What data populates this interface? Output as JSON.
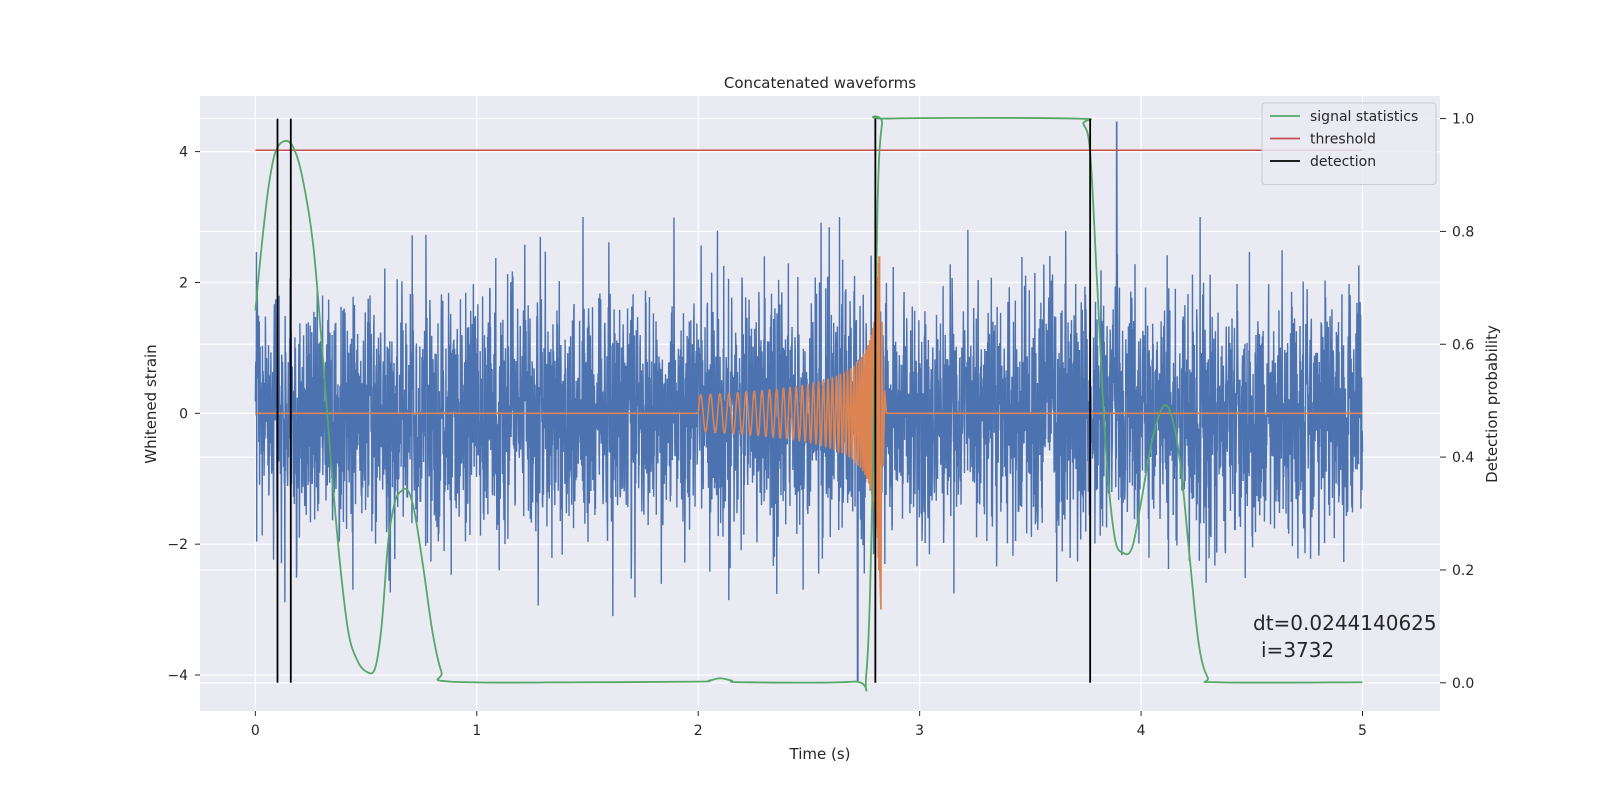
{
  "chart_data": {
    "type": "line",
    "title": "Concatenated waveforms",
    "xlabel": "Time (s)",
    "ylabel": "Whitened strain",
    "y2label": "Detection probability",
    "xlim": [
      -0.25,
      5.35
    ],
    "ylim": [
      -4.55,
      4.85
    ],
    "y2lim": [
      -0.05,
      1.04
    ],
    "xticks": [
      0,
      1,
      2,
      3,
      4,
      5
    ],
    "yticks": [
      -4,
      -2,
      0,
      2,
      4
    ],
    "y2ticks": [
      0.0,
      0.2,
      0.4,
      0.6,
      0.8,
      1.0
    ],
    "y2tick_labels": [
      "0.0",
      "0.2",
      "0.4",
      "0.6",
      "0.8",
      "1.0"
    ],
    "ytick_labels": [
      "−4",
      "−2",
      "0",
      "2",
      "4"
    ],
    "grid": true,
    "legend_position": "top-right",
    "legend": [
      {
        "name": "signal statistics",
        "color": "#55a868"
      },
      {
        "name": "threshold",
        "color": "#c44e52"
      },
      {
        "name": "detection",
        "color": "#000000"
      }
    ],
    "colors": {
      "noise": "#4c72b0",
      "template": "#dd8452",
      "statistics": "#55a868",
      "threshold": "#c44e52",
      "detection": "#000000",
      "plot_background": "#eaeaf2"
    },
    "noise": {
      "t_start": 0.0,
      "t_end": 5.0,
      "std": 0.95,
      "max_spike": 4.45,
      "spike_time": 3.89,
      "min_spike": -4.1,
      "min_spike_time": 2.72
    },
    "template": {
      "t_start": 2.0,
      "t_merge": 2.82,
      "peak_amplitude": 2.4,
      "min_amplitude": -3.0
    },
    "signal_statistics": {
      "points": [
        [
          0.0,
          0.66
        ],
        [
          0.03,
          0.78
        ],
        [
          0.06,
          0.88
        ],
        [
          0.09,
          0.94
        ],
        [
          0.13,
          0.96
        ],
        [
          0.17,
          0.95
        ],
        [
          0.21,
          0.9
        ],
        [
          0.26,
          0.78
        ],
        [
          0.3,
          0.6
        ],
        [
          0.34,
          0.4
        ],
        [
          0.38,
          0.22
        ],
        [
          0.42,
          0.09
        ],
        [
          0.46,
          0.04
        ],
        [
          0.5,
          0.02
        ],
        [
          0.54,
          0.025
        ],
        [
          0.57,
          0.1
        ],
        [
          0.6,
          0.25
        ],
        [
          0.63,
          0.32
        ],
        [
          0.66,
          0.34
        ],
        [
          0.69,
          0.34
        ],
        [
          0.72,
          0.3
        ],
        [
          0.76,
          0.2
        ],
        [
          0.8,
          0.09
        ],
        [
          0.84,
          0.02
        ],
        [
          0.88,
          0.002
        ],
        [
          1.5,
          0.001
        ],
        [
          2.0,
          0.002
        ],
        [
          2.05,
          0.004
        ],
        [
          2.1,
          0.008
        ],
        [
          2.15,
          0.004
        ],
        [
          2.2,
          0.001
        ],
        [
          2.7,
          0.002
        ],
        [
          2.76,
          0.02
        ],
        [
          2.79,
          0.4
        ],
        [
          2.81,
          0.85
        ],
        [
          2.83,
          0.99
        ],
        [
          2.86,
          1.0
        ],
        [
          3.7,
          1.0
        ],
        [
          3.74,
          0.99
        ],
        [
          3.77,
          0.94
        ],
        [
          3.8,
          0.72
        ],
        [
          3.84,
          0.42
        ],
        [
          3.88,
          0.26
        ],
        [
          3.92,
          0.23
        ],
        [
          3.96,
          0.24
        ],
        [
          4.0,
          0.32
        ],
        [
          4.05,
          0.43
        ],
        [
          4.1,
          0.49
        ],
        [
          4.14,
          0.47
        ],
        [
          4.18,
          0.38
        ],
        [
          4.22,
          0.22
        ],
        [
          4.26,
          0.07
        ],
        [
          4.3,
          0.01
        ],
        [
          4.35,
          0.001
        ],
        [
          5.0,
          0.001
        ]
      ]
    },
    "threshold": {
      "value": 4.02,
      "x_start": 0.0,
      "x_end": 5.0
    },
    "detections": [
      0.1,
      0.16,
      2.8,
      3.77
    ],
    "annotation": {
      "line1": "dt=0.0244140625",
      "line2": "i=3732",
      "x": 4.5,
      "y": 0.11
    }
  }
}
